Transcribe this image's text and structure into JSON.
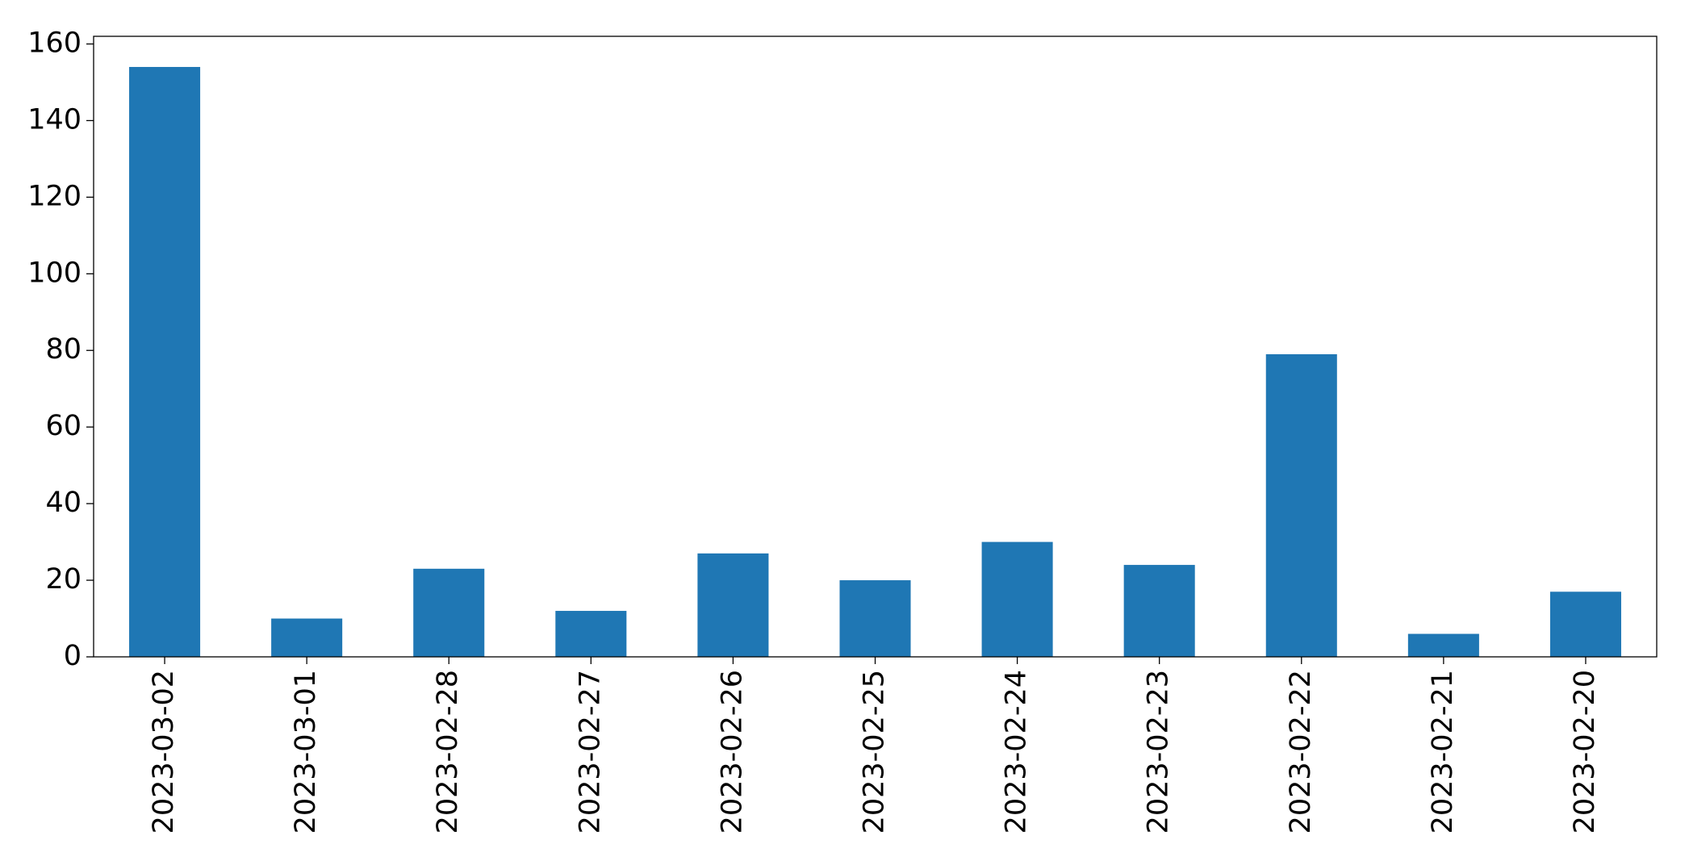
{
  "chart_data": {
    "type": "bar",
    "categories": [
      "2023-03-02",
      "2023-03-01",
      "2023-02-28",
      "2023-02-27",
      "2023-02-26",
      "2023-02-25",
      "2023-02-24",
      "2023-02-23",
      "2023-02-22",
      "2023-02-21",
      "2023-02-20"
    ],
    "values": [
      154,
      10,
      23,
      12,
      27,
      20,
      30,
      24,
      79,
      6,
      17
    ],
    "color": "#1f77b4",
    "ylim": [
      0,
      162
    ],
    "yticks": [
      0,
      20,
      40,
      60,
      80,
      100,
      120,
      140,
      160
    ],
    "grid": false
  }
}
